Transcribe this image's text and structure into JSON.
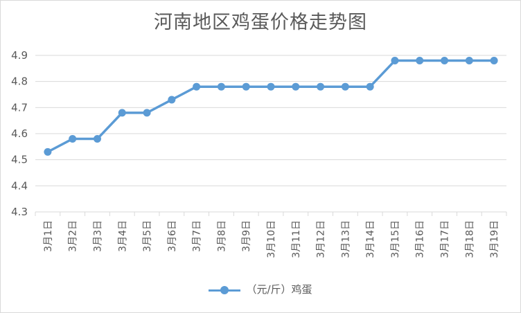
{
  "chart_data": {
    "type": "line",
    "title": "河南地区鸡蛋价格走势图",
    "categories": [
      "3月1日",
      "3月2日",
      "3月3日",
      "3月4日",
      "3月5日",
      "3月6日",
      "3月7日",
      "3月8日",
      "3月9日",
      "3月10日",
      "3月11日",
      "3月12日",
      "3月13日",
      "3月14日",
      "3月15日",
      "3月16日",
      "3月17日",
      "3月18日",
      "3月19日"
    ],
    "series": [
      {
        "name": "（元/斤）鸡蛋",
        "values": [
          4.53,
          4.58,
          4.58,
          4.68,
          4.68,
          4.73,
          4.78,
          4.78,
          4.78,
          4.78,
          4.78,
          4.78,
          4.78,
          4.78,
          4.88,
          4.88,
          4.88,
          4.88,
          4.88
        ]
      }
    ],
    "yticks": [
      "4.3",
      "4.4",
      "4.5",
      "4.6",
      "4.7",
      "4.8",
      "4.9"
    ],
    "ylim": [
      4.3,
      4.9
    ],
    "grid": true,
    "legend_position": "bottom",
    "colors": {
      "series": "#5b9bd5",
      "grid": "#d9d9d9",
      "text": "#595959"
    }
  }
}
